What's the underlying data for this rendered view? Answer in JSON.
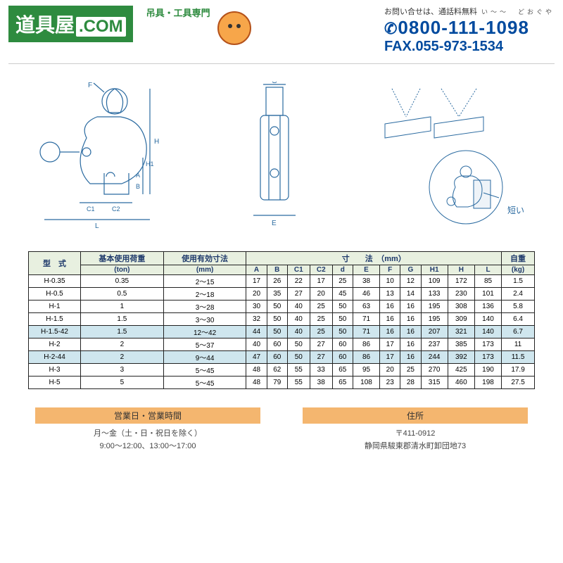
{
  "header": {
    "logo_main": "道具屋",
    "logo_com": ".COM",
    "logo_sub": "吊具・工具専門",
    "contact_small": "お問い合せは、通話料無料",
    "tel_ruby": "い～～　どおぐや",
    "tel": "0800-111-1098",
    "fax": "FAX.055-973-1534"
  },
  "diagram": {
    "short_label": "短い"
  },
  "table": {
    "headers": {
      "model": "型　式",
      "load": "基本使用荷重",
      "load_unit": "(ton)",
      "range": "使用有効寸法",
      "range_unit": "(mm)",
      "dims": "寸　　法　（mm）",
      "dimcols": [
        "A",
        "B",
        "C1",
        "C2",
        "d",
        "E",
        "F",
        "G",
        "H1",
        "H",
        "L"
      ],
      "weight": "自重",
      "weight_unit": "(kg)"
    },
    "rows": [
      {
        "m": "H-0.35",
        "t": "0.35",
        "r": "2～15",
        "d": [
          "17",
          "26",
          "22",
          "17",
          "25",
          "38",
          "10",
          "12",
          "109",
          "172",
          "85"
        ],
        "w": "1.5",
        "hl": false
      },
      {
        "m": "H-0.5",
        "t": "0.5",
        "r": "2～18",
        "d": [
          "20",
          "35",
          "27",
          "20",
          "45",
          "46",
          "13",
          "14",
          "133",
          "230",
          "101"
        ],
        "w": "2.4",
        "hl": false
      },
      {
        "m": "H-1",
        "t": "1",
        "r": "3～28",
        "d": [
          "30",
          "50",
          "40",
          "25",
          "50",
          "63",
          "16",
          "16",
          "195",
          "308",
          "136"
        ],
        "w": "5.8",
        "hl": false
      },
      {
        "m": "H-1.5",
        "t": "1.5",
        "r": "3～30",
        "d": [
          "32",
          "50",
          "40",
          "25",
          "50",
          "71",
          "16",
          "16",
          "195",
          "309",
          "140"
        ],
        "w": "6.4",
        "hl": false
      },
      {
        "m": "H-1.5-42",
        "t": "1.5",
        "r": "12～42",
        "d": [
          "44",
          "50",
          "40",
          "25",
          "50",
          "71",
          "16",
          "16",
          "207",
          "321",
          "140"
        ],
        "w": "6.7",
        "hl": true
      },
      {
        "m": "H-2",
        "t": "2",
        "r": "5～37",
        "d": [
          "40",
          "60",
          "50",
          "27",
          "60",
          "86",
          "17",
          "16",
          "237",
          "385",
          "173"
        ],
        "w": "11",
        "hl": false
      },
      {
        "m": "H-2-44",
        "t": "2",
        "r": "9～44",
        "d": [
          "47",
          "60",
          "50",
          "27",
          "60",
          "86",
          "17",
          "16",
          "244",
          "392",
          "173"
        ],
        "w": "11.5",
        "hl": true
      },
      {
        "m": "H-3",
        "t": "3",
        "r": "5～45",
        "d": [
          "48",
          "62",
          "55",
          "33",
          "65",
          "95",
          "20",
          "25",
          "270",
          "425",
          "190"
        ],
        "w": "17.9",
        "hl": false
      },
      {
        "m": "H-5",
        "t": "5",
        "r": "5～45",
        "d": [
          "48",
          "79",
          "55",
          "38",
          "65",
          "108",
          "23",
          "28",
          "315",
          "460",
          "198"
        ],
        "w": "27.5",
        "hl": false
      }
    ]
  },
  "footer": {
    "hours_head": "営業日・営業時間",
    "hours_l1": "月～金（土・日・祝日を除く）",
    "hours_l2": "9:00～12:00、13:00～17:00",
    "addr_head": "住所",
    "addr_l1": "〒411-0912",
    "addr_l2": "静岡県駿東郡清水町卸団地73"
  },
  "colors": {
    "green": "#2e8b3f",
    "blue": "#004a9e",
    "diag": "#2a6aa0",
    "orange": "#f4b66f",
    "highlight": "#cfe6ee",
    "header_bg": "#e8f0e0"
  }
}
